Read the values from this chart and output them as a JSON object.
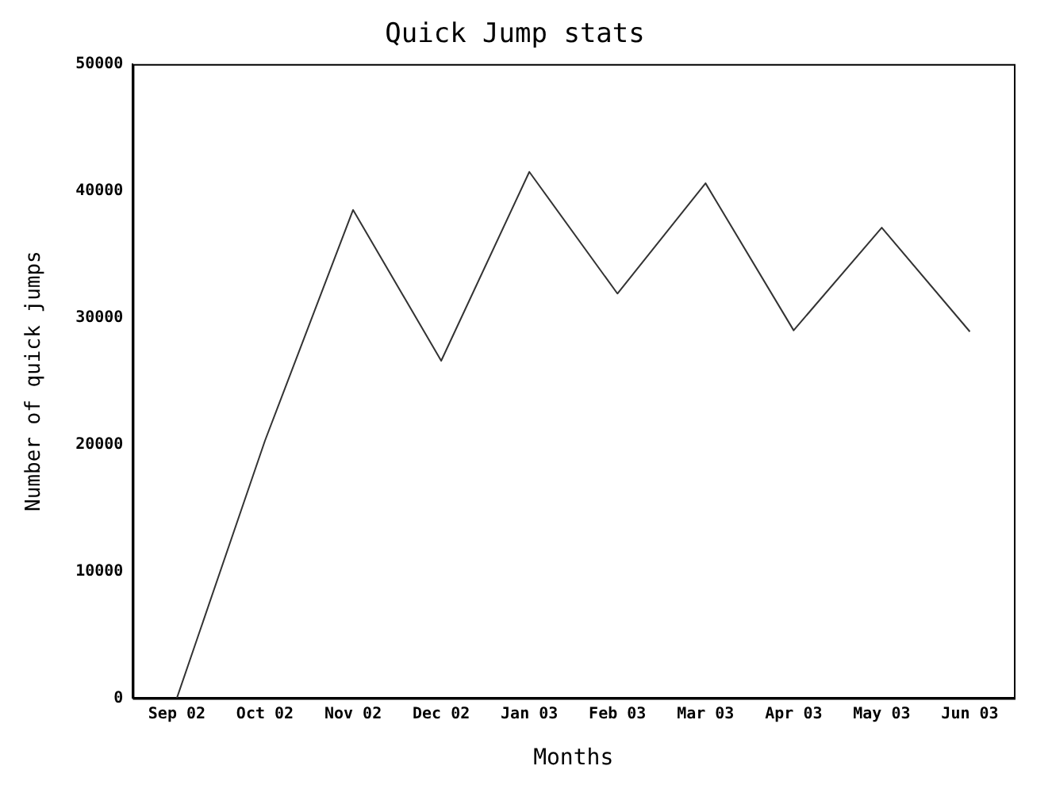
{
  "chart_data": {
    "type": "line",
    "title": "Quick Jump stats",
    "xlabel": "Months",
    "ylabel": "Number of quick jumps",
    "categories": [
      "Sep 02",
      "Oct 02",
      "Nov 02",
      "Dec 02",
      "Jan 03",
      "Feb 03",
      "Mar 03",
      "Apr 03",
      "May 03",
      "Jun 03"
    ],
    "series": [
      {
        "color": "#333333",
        "values": [
          0,
          20300,
          38500,
          26600,
          41500,
          31900,
          40600,
          29000,
          37100,
          28900
        ]
      }
    ],
    "ylim": [
      0,
      50000
    ],
    "yticks": [
      0,
      10000,
      20000,
      30000,
      40000,
      50000
    ],
    "grid": false,
    "legend": false,
    "marker": "none",
    "line_style": "solid"
  }
}
